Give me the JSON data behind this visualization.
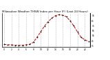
{
  "hours": [
    0,
    1,
    2,
    3,
    4,
    5,
    6,
    7,
    8,
    9,
    10,
    11,
    12,
    13,
    14,
    15,
    16,
    17,
    18,
    19,
    20,
    21,
    22,
    23
  ],
  "values": [
    38,
    37,
    37,
    36,
    36,
    36,
    37,
    38,
    42,
    52,
    63,
    74,
    83,
    90,
    95,
    97,
    96,
    93,
    85,
    75,
    63,
    52,
    47,
    44
  ],
  "line_color": "#cc0000",
  "marker_color": "#000000",
  "bg_color": "#ffffff",
  "plot_bg": "#ffffff",
  "title": "Milwaukee Weather THSW Index per Hour (F) (Last 24 Hours)",
  "title_fontsize": 3.0,
  "ylim": [
    33,
    100
  ],
  "xlim": [
    -0.5,
    23.5
  ],
  "yticks": [
    35,
    45,
    55,
    65,
    75,
    85,
    95
  ],
  "ytick_labels": [
    "35",
    "45",
    "55",
    "65",
    "75",
    "85",
    "95"
  ],
  "xticks": [
    0,
    2,
    4,
    6,
    8,
    10,
    12,
    14,
    16,
    18,
    20,
    22
  ],
  "xtick_labels": [
    "0",
    "2",
    "4",
    "6",
    "8",
    "10",
    "12",
    "14",
    "16",
    "18",
    "20",
    "22"
  ],
  "grid_color": "#888888",
  "grid_positions": [
    0,
    2,
    4,
    6,
    8,
    10,
    12,
    14,
    16,
    18,
    20,
    22
  ]
}
